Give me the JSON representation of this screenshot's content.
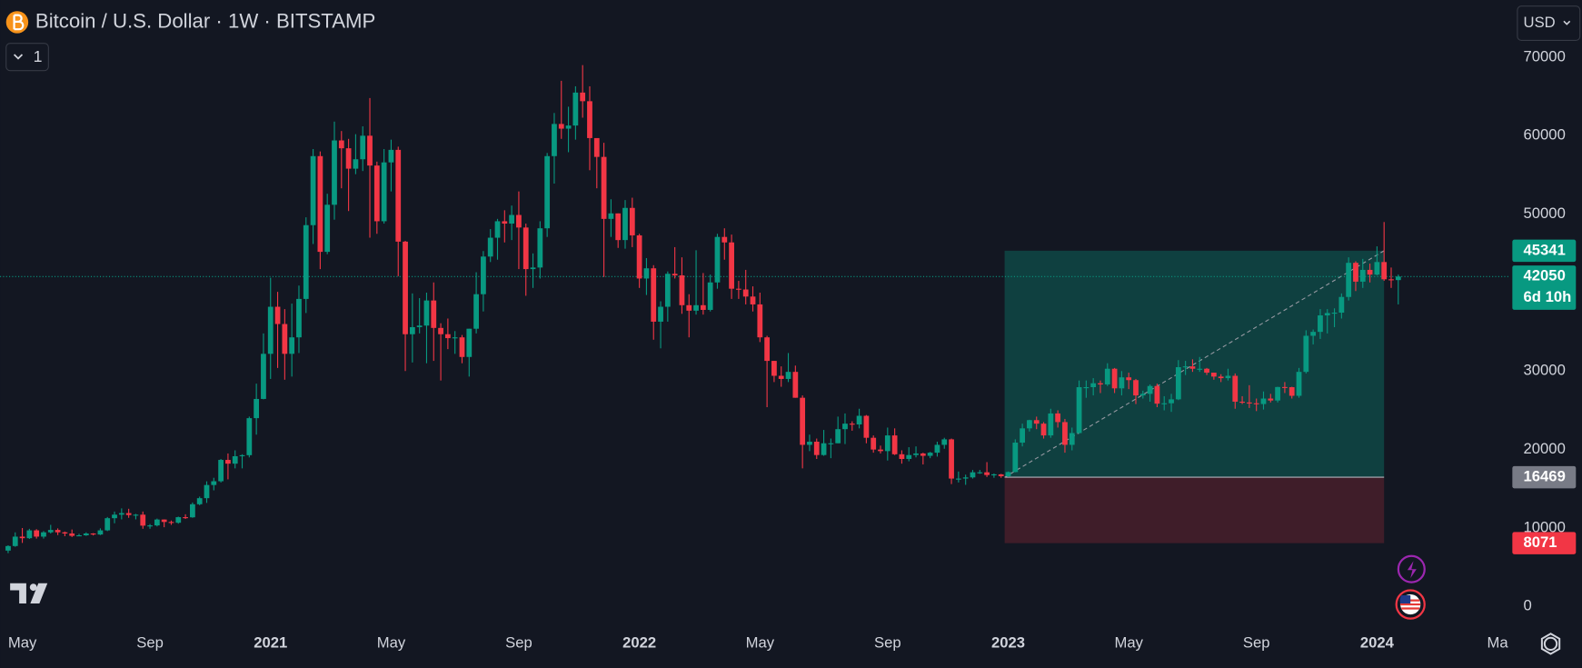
{
  "chart_data": {
    "type": "candlestick",
    "title": "Bitcoin / U.S. Dollar · 1W · BITSTAMP",
    "interval_button": "1",
    "currency": "USD",
    "countdown": "6d 10h",
    "up_color": "#089981",
    "down_color": "#f23645",
    "grid": false,
    "xlim": [
      -1.14,
      211.8
    ],
    "ylim": [
      -2700,
      77300
    ],
    "yticks": [
      0,
      10000,
      20000,
      30000,
      40000,
      50000,
      60000,
      70000
    ],
    "xticks": [
      {
        "value": 2,
        "label": "May"
      },
      {
        "value": 20,
        "label": "Sep"
      },
      {
        "value": 37,
        "label": "2021"
      },
      {
        "value": 54,
        "label": "May"
      },
      {
        "value": 72,
        "label": "Sep"
      },
      {
        "value": 89,
        "label": "2022"
      },
      {
        "value": 106,
        "label": "May"
      },
      {
        "value": 124,
        "label": "Sep"
      },
      {
        "value": 141,
        "label": "2023"
      },
      {
        "value": 158,
        "label": "May"
      },
      {
        "value": 176,
        "label": "Sep"
      },
      {
        "value": 193,
        "label": "2024"
      },
      {
        "value": 210,
        "label": "Ma"
      }
    ],
    "position": {
      "entry": 16469,
      "target": 45341,
      "stop": 8071,
      "from": 140.5,
      "to": 194
    },
    "open": [
      7120,
      7700,
      8900,
      8700,
      9700,
      8900,
      9450,
      9750,
      9450,
      9300,
      9000,
      9070,
      9300,
      9170,
      9700,
      11250,
      11700,
      11900,
      11650,
      11700,
      10300,
      10330,
      11080,
      10770,
      10670,
      11380,
      11360,
      13030,
      13800,
      15480,
      15960,
      18680,
      18200,
      19150,
      19280,
      24000,
      26450,
      32200,
      38200,
      36000,
      32200,
      34300,
      39200,
      48600,
      57400,
      45200,
      51200,
      59400,
      58400,
      55800,
      57000,
      60000,
      56200,
      49100,
      56600,
      58200,
      46500,
      34700,
      35600,
      35800,
      39000,
      35500,
      34700,
      34200,
      34300,
      31800,
      35400,
      39800,
      44600,
      47000,
      49100,
      48800,
      49900,
      48300,
      43000,
      43200,
      48200,
      57400,
      61500,
      60900,
      61300,
      65500,
      64400,
      59700,
      57300,
      49400,
      50100,
      46700,
      50800,
      47300,
      41800,
      43100,
      36300,
      38200,
      42400,
      42200,
      38400,
      37700,
      38400,
      37800,
      41300,
      47100,
      46400,
      40500,
      40400,
      39500,
      38500,
      34300,
      31300,
      29400,
      29000,
      29900,
      26600,
      20600,
      21000,
      19300,
      20800,
      20800,
      22600,
      23300,
      23200,
      24300,
      21500,
      20000,
      19800,
      21800,
      19400,
      18800,
      19300,
      19500,
      19200,
      19600,
      20600,
      21300,
      16300,
      16300,
      16450,
      17100,
      17100,
      16750,
      16840,
      16600,
      17130,
      20880,
      22700,
      23750,
      23300,
      21800,
      24600,
      23500,
      20600,
      22100,
      27950,
      27950,
      28450,
      28300,
      30300,
      27800,
      29200,
      28850,
      26900,
      27100,
      28100,
      25850,
      25900,
      26400,
      30500,
      30600,
      30300,
      30300,
      29800,
      29300,
      29100,
      29400,
      26100,
      26000,
      25900,
      25800,
      26500,
      26250,
      27970,
      27950,
      26850,
      29900,
      34500,
      35000,
      37100,
      37400,
      37450,
      39450,
      43800,
      41400,
      42900,
      42300,
      43900,
      41700,
      41600
    ],
    "high": [
      7800,
      9450,
      10000,
      9900,
      9850,
      9600,
      10400,
      9950,
      9550,
      9800,
      9250,
      9450,
      9350,
      9950,
      11400,
      12100,
      12500,
      12450,
      11800,
      12100,
      10500,
      11200,
      11100,
      10950,
      11450,
      11750,
      13250,
      14000,
      15950,
      16400,
      18800,
      19500,
      19900,
      19400,
      24200,
      28400,
      34800,
      41900,
      40100,
      37900,
      38600,
      40900,
      49600,
      58300,
      58000,
      52600,
      61800,
      60600,
      59600,
      60200,
      61200,
      64800,
      56700,
      58300,
      59500,
      58600,
      46600,
      39900,
      39300,
      40000,
      41300,
      36100,
      36700,
      35100,
      34600,
      35400,
      42600,
      45300,
      48100,
      49400,
      50500,
      51100,
      52900,
      48800,
      45000,
      49100,
      57800,
      62900,
      67000,
      63700,
      66300,
      69000,
      66300,
      59300,
      59100,
      51900,
      50100,
      51800,
      52100,
      47500,
      44400,
      43500,
      38900,
      42700,
      45800,
      44500,
      39800,
      45400,
      42500,
      42300,
      47500,
      48200,
      47400,
      41500,
      42900,
      40800,
      40000,
      34500,
      31300,
      30600,
      32300,
      30700,
      26900,
      21900,
      21400,
      22500,
      21400,
      24200,
      24600,
      23600,
      25200,
      24400,
      21800,
      20500,
      22800,
      22700,
      19900,
      20300,
      20400,
      19600,
      19700,
      21000,
      21500,
      21400,
      17200,
      16800,
      17400,
      17400,
      18400,
      16950,
      16900,
      17200,
      21300,
      23300,
      23800,
      24200,
      23500,
      25200,
      25000,
      23900,
      22800,
      28800,
      28800,
      29100,
      28800,
      31000,
      30400,
      30000,
      29800,
      29000,
      27500,
      28300,
      28400,
      26800,
      27100,
      31400,
      31300,
      31500,
      31800,
      30400,
      29800,
      29600,
      30300,
      29700,
      26800,
      28200,
      26500,
      27400,
      27100,
      28000,
      28600,
      28000,
      30400,
      35200,
      35300,
      37900,
      37900,
      38000,
      39900,
      44500,
      44000,
      44300,
      43700,
      45900,
      49000,
      43200,
      42300
    ],
    "low": [
      6800,
      7600,
      8100,
      8600,
      8650,
      8650,
      9300,
      9100,
      8950,
      8850,
      8950,
      9000,
      9050,
      9100,
      9600,
      10600,
      11100,
      11300,
      11100,
      9900,
      9900,
      10200,
      10100,
      10400,
      10550,
      11150,
      11300,
      12900,
      13200,
      14800,
      15800,
      16200,
      17600,
      17600,
      19000,
      21900,
      26400,
      29000,
      30400,
      28900,
      29300,
      32300,
      37400,
      46200,
      43000,
      44900,
      49300,
      53300,
      50400,
      55100,
      55500,
      47000,
      47500,
      48800,
      52900,
      42100,
      30000,
      31100,
      34800,
      31000,
      31300,
      28800,
      32800,
      32200,
      31000,
      29300,
      34800,
      37600,
      43900,
      44200,
      46400,
      46700,
      43000,
      39600,
      40600,
      41800,
      47100,
      53900,
      59600,
      57900,
      59500,
      62300,
      55600,
      53300,
      42000,
      47100,
      45700,
      45600,
      45800,
      40600,
      39700,
      34000,
      32900,
      36300,
      41800,
      37300,
      34300,
      37200,
      37200,
      37600,
      40500,
      44200,
      39200,
      39200,
      38500,
      37600,
      33700,
      25400,
      28600,
      28000,
      28600,
      26600,
      17600,
      19800,
      18800,
      19200,
      18900,
      20800,
      20700,
      22400,
      22700,
      20800,
      19600,
      19500,
      18600,
      19300,
      18200,
      18500,
      19000,
      18100,
      18900,
      19100,
      20100,
      15600,
      15800,
      15500,
      16300,
      16900,
      16500,
      16400,
      16400,
      16500,
      17100,
      20400,
      22300,
      22600,
      21400,
      21500,
      22800,
      19600,
      19900,
      22000,
      26600,
      26900,
      27200,
      28100,
      27200,
      26900,
      27700,
      25800,
      26500,
      26100,
      25400,
      25000,
      24800,
      26300,
      29500,
      29900,
      29900,
      29500,
      28900,
      28600,
      28800,
      25200,
      25800,
      25300,
      24900,
      25100,
      26000,
      26000,
      27200,
      26500,
      26600,
      29700,
      33400,
      34100,
      34800,
      35600,
      36700,
      39000,
      40200,
      40600,
      41300,
      42200,
      41500,
      40600,
      38500
    ],
    "close": [
      7700,
      8900,
      8700,
      9700,
      8900,
      9450,
      9750,
      9450,
      9300,
      9000,
      9070,
      9300,
      9170,
      9700,
      11250,
      11700,
      11900,
      11650,
      11700,
      10300,
      10330,
      11080,
      10770,
      10670,
      11380,
      11360,
      13030,
      13800,
      15480,
      15960,
      18680,
      18200,
      19150,
      19280,
      24000,
      26450,
      32200,
      38200,
      36000,
      32200,
      34300,
      39200,
      48600,
      57400,
      45200,
      51200,
      59400,
      58400,
      55800,
      57000,
      60000,
      56200,
      49100,
      56600,
      58200,
      46500,
      34700,
      35600,
      35800,
      39000,
      35500,
      34700,
      34200,
      34300,
      31800,
      35400,
      39800,
      44600,
      47000,
      49100,
      48800,
      49900,
      48300,
      43000,
      43200,
      48200,
      57400,
      61500,
      60900,
      61300,
      65500,
      64400,
      59700,
      57300,
      49400,
      50100,
      46700,
      50800,
      47300,
      41800,
      43100,
      36300,
      38200,
      42400,
      42200,
      38400,
      37700,
      38400,
      37800,
      41300,
      47100,
      46400,
      40500,
      40400,
      39500,
      38500,
      34300,
      31300,
      29400,
      29000,
      29900,
      26600,
      20600,
      21000,
      19300,
      20800,
      20800,
      22600,
      23300,
      23200,
      24300,
      21500,
      20000,
      19800,
      21800,
      19400,
      18800,
      19300,
      19500,
      19200,
      19600,
      20600,
      21300,
      16300,
      16300,
      16450,
      17100,
      17100,
      16750,
      16840,
      16600,
      17130,
      20880,
      22700,
      23750,
      23300,
      21800,
      24600,
      23500,
      20600,
      22100,
      27950,
      27950,
      28450,
      28300,
      30300,
      27800,
      29200,
      28850,
      26900,
      27100,
      28100,
      25850,
      25900,
      26400,
      30500,
      30600,
      30300,
      30300,
      29800,
      29300,
      29100,
      29400,
      26100,
      26000,
      25900,
      25800,
      26500,
      26250,
      27970,
      27950,
      26850,
      29900,
      34500,
      35000,
      37100,
      37400,
      37450,
      39450,
      43800,
      41400,
      42900,
      42300,
      43900,
      41700,
      41600,
      42050
    ]
  }
}
